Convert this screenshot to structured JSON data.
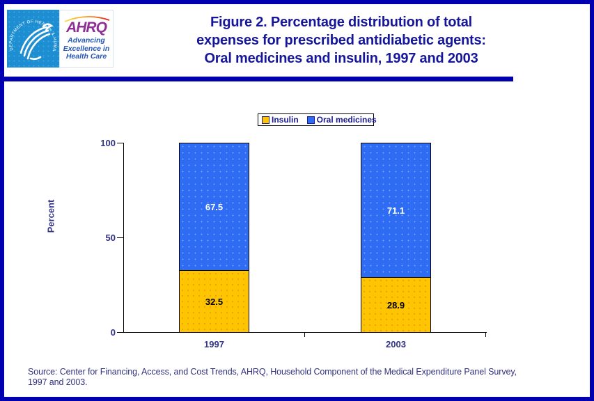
{
  "header": {
    "title_lines": [
      "Figure 2. Percentage distribution of total",
      "expenses for prescribed antidiabetic agents:",
      "Oral medicines and insulin, 1997 and 2003"
    ],
    "logo": {
      "agency": "AHRQ",
      "tagline_lines": [
        "Advancing",
        "Excellence in",
        "Health Care"
      ],
      "seal_text": "DEPARTMENT OF HEALTH & HUMAN SERVICES · USA"
    }
  },
  "chart_data": {
    "type": "bar",
    "stacked": true,
    "categories": [
      "1997",
      "2003"
    ],
    "series": [
      {
        "name": "Insulin",
        "color": "#ffc402",
        "values": [
          32.5,
          28.9
        ]
      },
      {
        "name": "Oral medicines",
        "color": "#2e6cf3",
        "values": [
          67.5,
          71.1
        ]
      }
    ],
    "title": "Percentage distribution of total expenses for prescribed antidiabetic agents: Oral medicines and insulin, 1997 and 2003",
    "xlabel": "",
    "ylabel": "Percent",
    "ylim": [
      0,
      100
    ],
    "yticks": [
      0,
      50,
      100
    ],
    "grid": false,
    "legend_position": "top-center",
    "value_label_colors": {
      "Insulin": "#000000",
      "Oral medicines": "#ffffff"
    }
  },
  "footer": {
    "source_lines": [
      "Source: Center for Financing, Access, and Cost Trends, AHRQ, Household Component of the Medical Expenditure Panel Survey,",
      "1997 and 2003."
    ]
  },
  "colors": {
    "frame": "#0000b0",
    "title_text": "#16169b",
    "axis_text": "#333387",
    "insulin_bar": "#ffc402",
    "oral_medicines_bar": "#2e6cf3",
    "hhs_seal_blue": "#1d8ed2",
    "ahrq_purple": "#8e2f93",
    "tagline_blue": "#2456b8"
  }
}
